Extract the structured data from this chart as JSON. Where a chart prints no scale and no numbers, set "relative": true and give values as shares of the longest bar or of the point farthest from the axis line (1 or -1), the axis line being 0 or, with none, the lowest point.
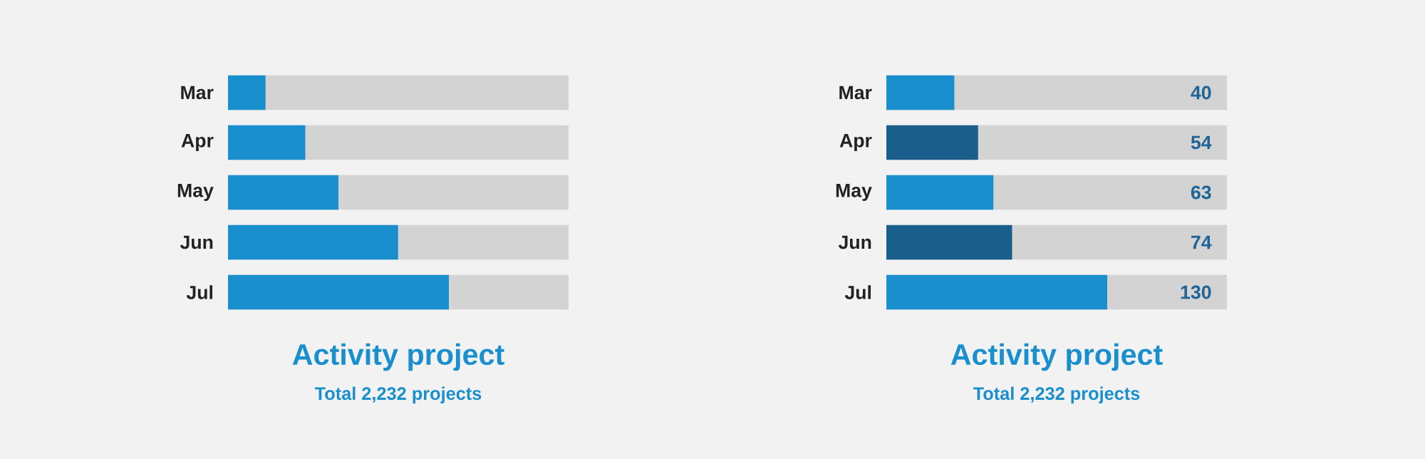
{
  "chart_data": [
    {
      "type": "bar",
      "orientation": "horizontal",
      "relative": true,
      "categories": [
        "Mar",
        "Apr",
        "May",
        "Jun",
        "Jul"
      ],
      "values": [
        0.17,
        0.35,
        0.5,
        0.77,
        1
      ],
      "color": "#1a8fce",
      "title": "Activity project",
      "subtitle": "Total 2,232 projects"
    },
    {
      "type": "bar",
      "orientation": "horizontal",
      "tick_labels": "y",
      "categories": [
        "Mar",
        "Apr",
        "May",
        "Jun",
        "Jul"
      ],
      "values": [
        40,
        54,
        63,
        74,
        130
      ],
      "colors": [
        "#1a8fce",
        "#1a5f8c",
        "#1a8fce",
        "#1a5f8c",
        "#1a8fce"
      ],
      "data_labels": true,
      "title": "Activity project",
      "subtitle": "Total 2,232 projects"
    }
  ]
}
